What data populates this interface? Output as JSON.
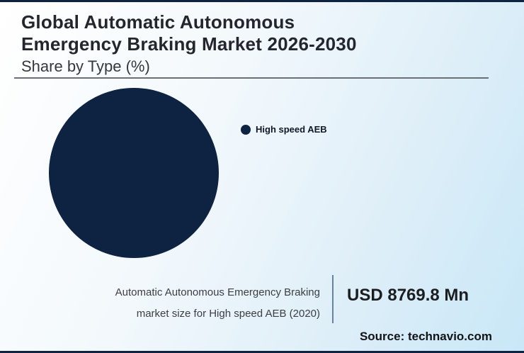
{
  "header": {
    "title_line1": "Global Automatic Autonomous",
    "title_line2": "Emergency Braking Market 2026-2030",
    "subtitle": "Share by Type (%)"
  },
  "chart_data": {
    "type": "pie",
    "title": "Global Automatic Autonomous Emergency Braking Market 2026-2030",
    "subtitle": "Share by Type (%)",
    "slices": [
      {
        "label": "High speed AEB",
        "value": 100,
        "color": "#0e2242"
      }
    ],
    "legend_position": "right"
  },
  "stat": {
    "description_line1": "Automatic Autonomous Emergency Braking",
    "description_line2": "market size for High speed AEB (2020)",
    "value": "USD 8769.8 Mn"
  },
  "footer": {
    "source": "Source: technavio.com"
  },
  "colors": {
    "pie": "#0e2242",
    "edge_bar": "#0e2242",
    "divider": "#6a82a0"
  }
}
